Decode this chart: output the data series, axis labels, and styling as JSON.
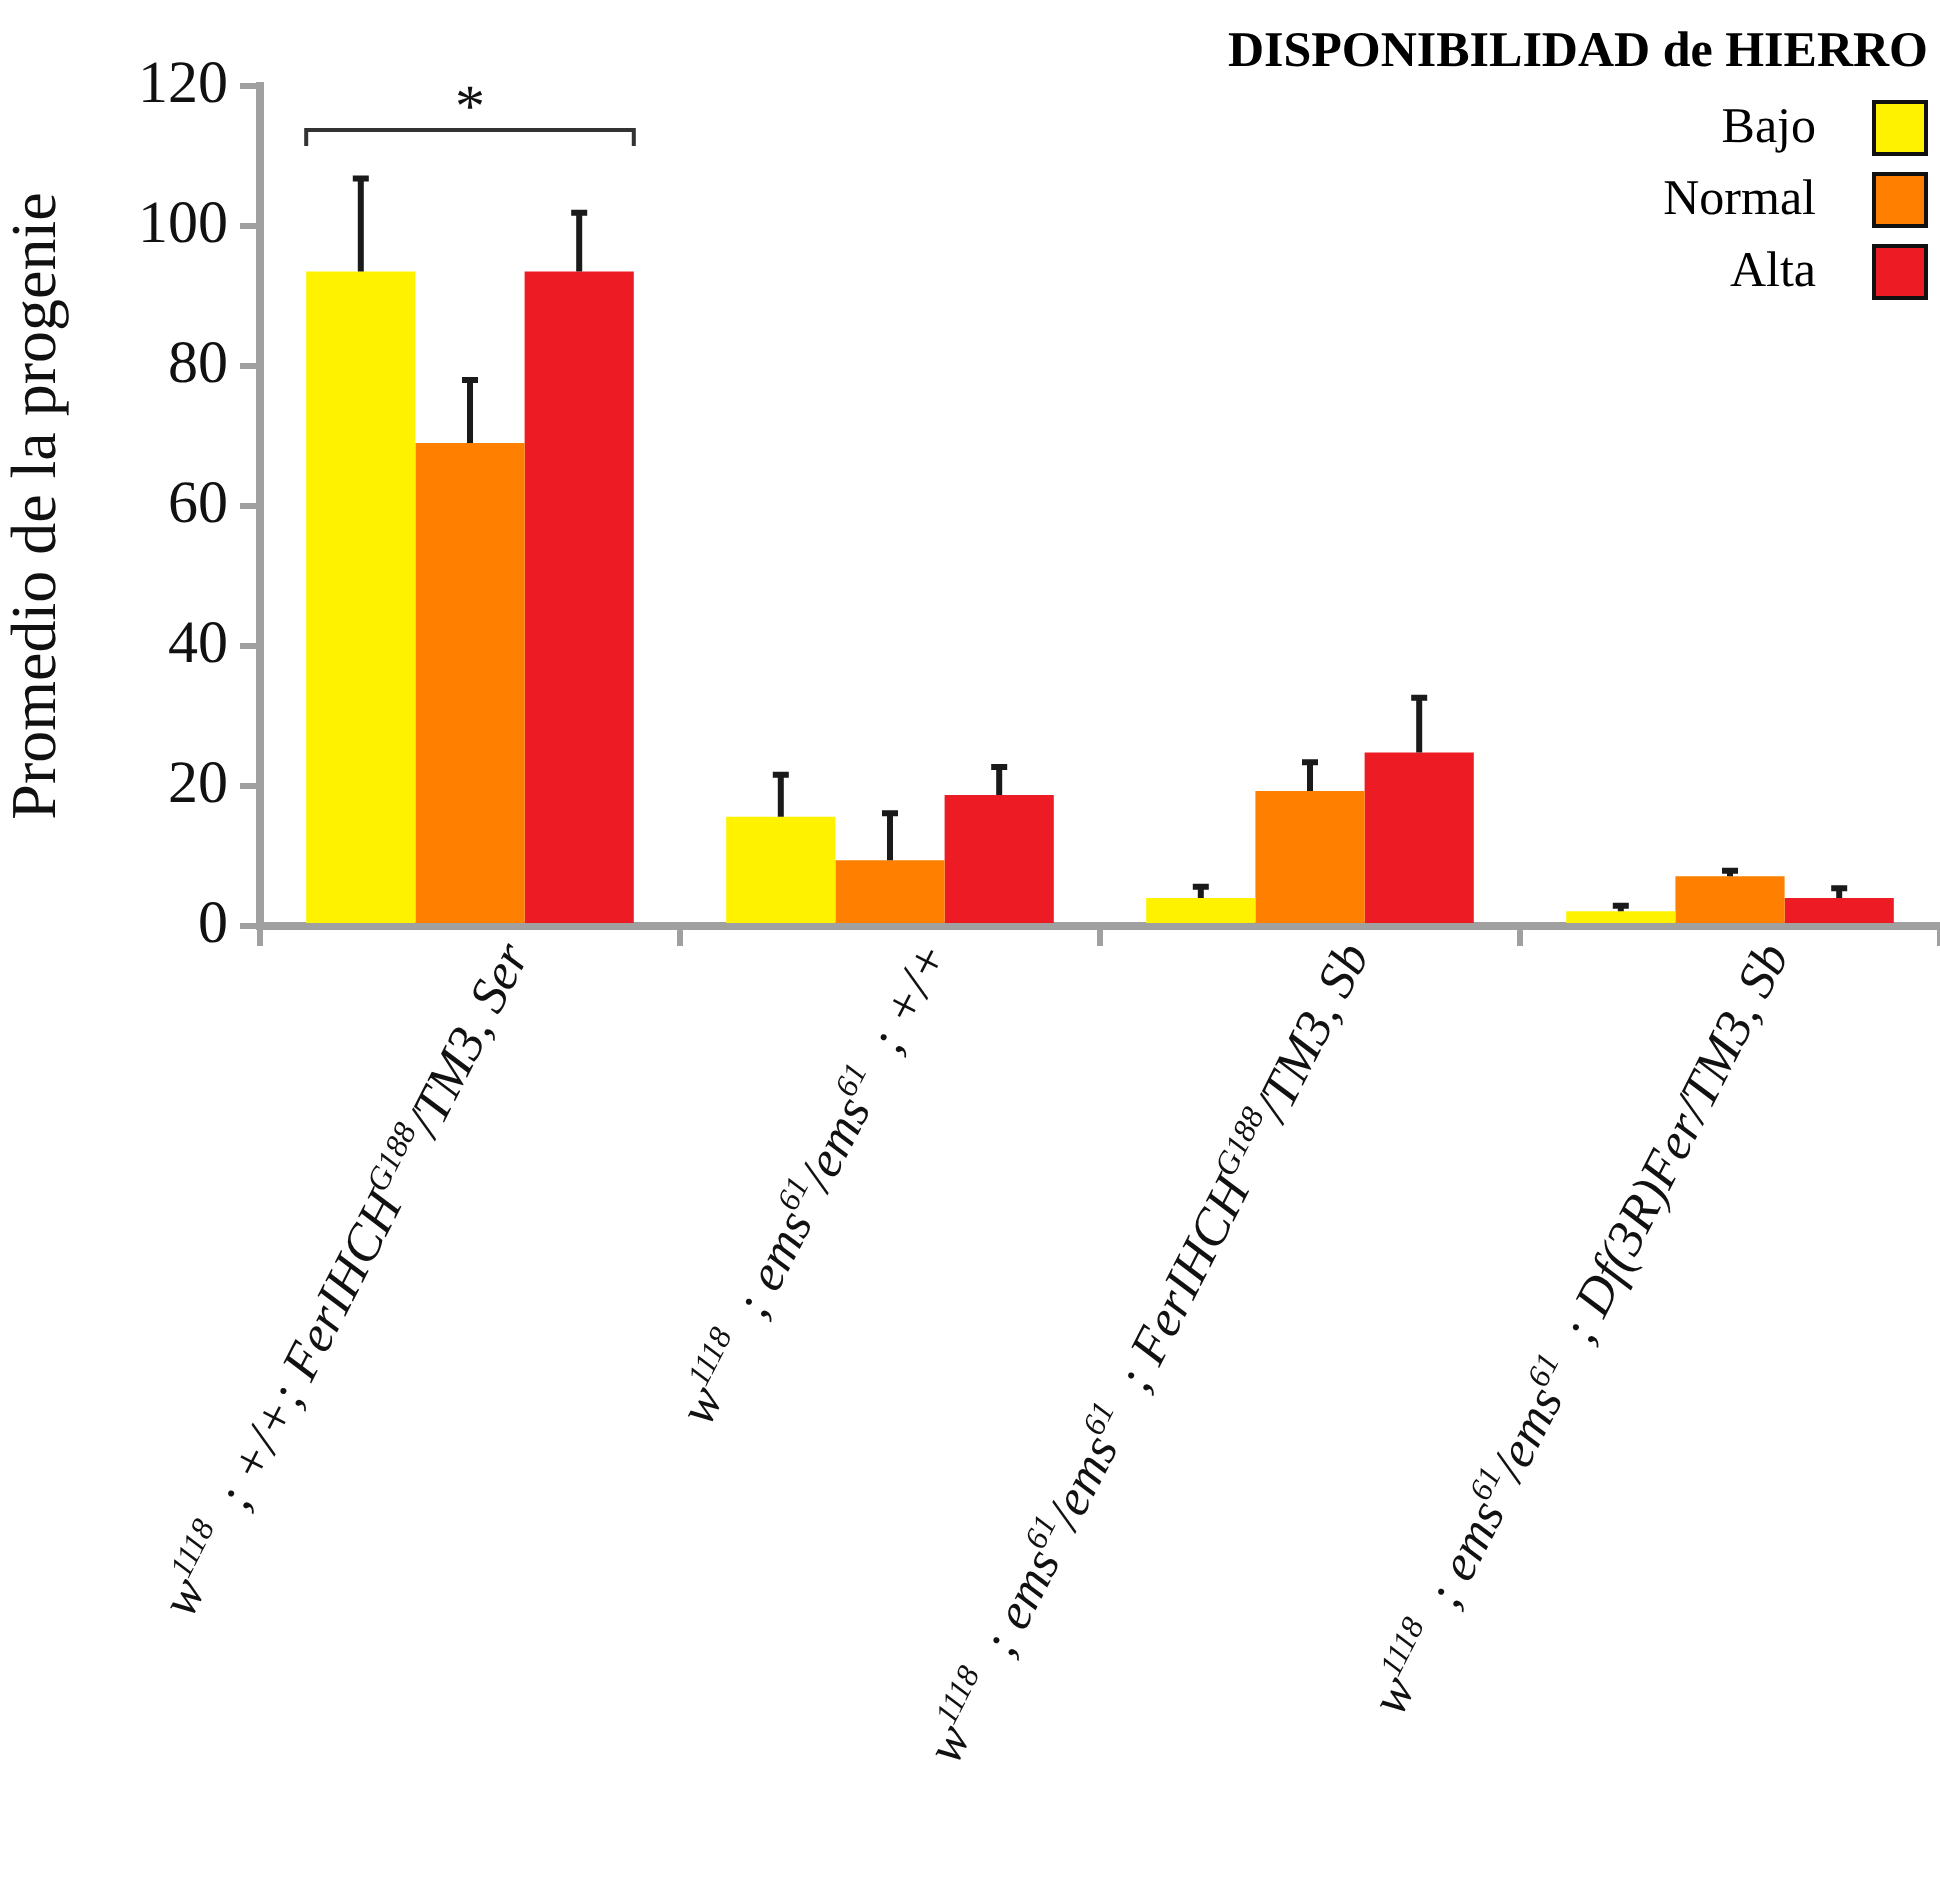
{
  "chart_data": {
    "type": "bar",
    "ylabel": "Promedio de la progenie",
    "legend_title": "DISPONIBILIDAD de HIERRO",
    "categories": [
      "w$^{1118}$ ; +/+; FerIHCH$^{G188}$/TM3, Ser",
      "w$^{1118}$ ; ems$^{61}$/ems$^{61}$ ; +/+",
      "w$^{1118}$ ; ems$^{61}$/ems$^{61}$ ; FerIHCH$^{G188}$/TM3, Sb",
      "w$^{1118}$ ; ems$^{61}$/ems$^{61}$ ; Df(3R)Fer/TM3, Sb"
    ],
    "series": [
      {
        "name": "Bajo",
        "color": "#fff200",
        "values": [
          93.5,
          15.6,
          4,
          2.1
        ],
        "errors": [
          [
            93.5,
            106.8
          ],
          [
            15.6,
            21.6
          ],
          [
            4,
            5.6
          ],
          [
            2.1,
            2.9
          ]
        ]
      },
      {
        "name": "Normal",
        "color": "#ff8000",
        "values": [
          69,
          9.4,
          19.3,
          7.1
        ],
        "errors": [
          [
            69,
            78
          ],
          [
            9.4,
            16.1
          ],
          [
            19.3,
            23.4
          ],
          [
            7.1,
            7.9
          ]
        ]
      },
      {
        "name": "Alta",
        "color": "#ed1c24",
        "values": [
          93.5,
          18.7,
          24.8,
          4
        ],
        "errors": [
          [
            93.5,
            101.9
          ],
          [
            18.7,
            22.7
          ],
          [
            24.8,
            32.6
          ],
          [
            4,
            5.4
          ]
        ]
      }
    ],
    "ylim": [
      0,
      120
    ],
    "yticks": [
      0,
      20,
      40,
      60,
      80,
      100,
      120
    ],
    "grid": false,
    "legend": "top right",
    "annotations": [
      "*"
    ]
  }
}
